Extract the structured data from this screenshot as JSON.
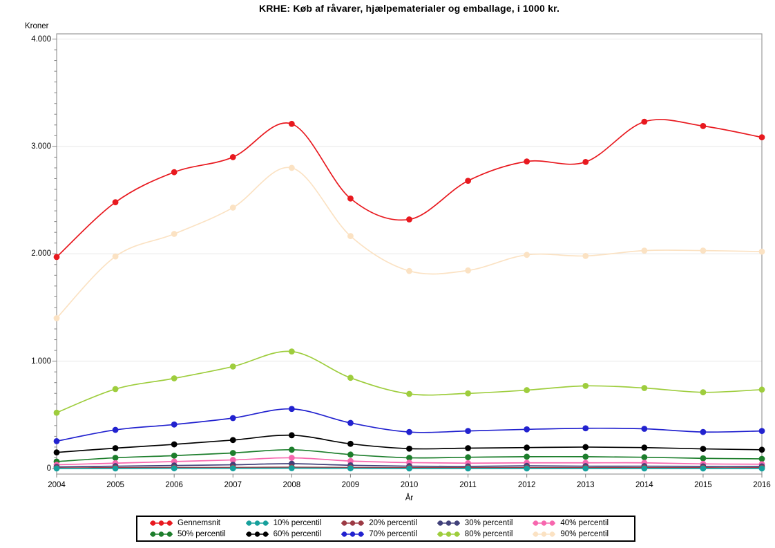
{
  "chart": {
    "title": "KRHE: Køb af råvarer, hjælpematerialer og emballage, i 1000 kr.",
    "y_axis": {
      "title": "Kroner",
      "tick_labels": [
        "0",
        "1.000",
        "2.000",
        "3.000",
        "4.000"
      ],
      "tick_values": [
        0,
        1000,
        2000,
        3000,
        4000
      ],
      "minor_tick_step": 100,
      "min": 0,
      "max": 4000
    },
    "x_axis": {
      "title": "År",
      "tick_labels": [
        "2004",
        "2005",
        "2006",
        "2007",
        "2008",
        "2009",
        "2010",
        "2011",
        "2012",
        "2013",
        "2014",
        "2015",
        "2016"
      ]
    },
    "frame_color": "#999999",
    "grid_color": "#e7e7e7",
    "tick_color": "#808080"
  },
  "chart_data": {
    "type": "line",
    "title": "KRHE: Køb af råvarer, hjælpematerialer og emballage, i 1000 kr.",
    "xlabel": "År",
    "ylabel": "Kroner",
    "ylim": [
      0,
      4000
    ],
    "grid": "horizontal",
    "legend_position": "bottom",
    "marker": "filled-circle",
    "smooth": true,
    "x": [
      2004,
      2005,
      2006,
      2007,
      2008,
      2009,
      2010,
      2011,
      2012,
      2013,
      2014,
      2015,
      2016
    ],
    "series": [
      {
        "name": "Gennemsnit",
        "color": "#e8191f",
        "values": [
          1970,
          2480,
          2760,
          2900,
          3210,
          2515,
          2320,
          2680,
          2860,
          2855,
          3230,
          3190,
          3085
        ]
      },
      {
        "name": "10% percentil",
        "color": "#17a09c",
        "values": [
          1,
          1,
          2,
          2,
          3,
          2,
          1,
          1,
          1,
          1,
          1,
          1,
          1
        ]
      },
      {
        "name": "20% percentil",
        "color": "#9c3a44",
        "values": [
          5,
          8,
          9,
          10,
          12,
          9,
          8,
          8,
          8,
          8,
          8,
          7,
          7
        ]
      },
      {
        "name": "30% percentil",
        "color": "#41417a",
        "values": [
          15,
          22,
          28,
          35,
          45,
          30,
          22,
          20,
          25,
          22,
          22,
          20,
          20
        ]
      },
      {
        "name": "40% percentil",
        "color": "#f767ae",
        "values": [
          35,
          50,
          65,
          80,
          100,
          70,
          55,
          50,
          53,
          53,
          53,
          43,
          40
        ]
      },
      {
        "name": "50% percentil",
        "color": "#1d7e2c",
        "values": [
          65,
          100,
          120,
          145,
          175,
          130,
          100,
          105,
          110,
          110,
          105,
          95,
          90
        ]
      },
      {
        "name": "60% percentil",
        "color": "#000000",
        "values": [
          150,
          190,
          225,
          265,
          310,
          230,
          185,
          190,
          195,
          200,
          195,
          183,
          175
        ]
      },
      {
        "name": "70% percentil",
        "color": "#2222cf",
        "values": [
          255,
          360,
          410,
          470,
          555,
          425,
          340,
          350,
          365,
          375,
          370,
          340,
          350
        ]
      },
      {
        "name": "80% percentil",
        "color": "#9ecd3d",
        "values": [
          520,
          740,
          840,
          950,
          1090,
          845,
          695,
          700,
          730,
          770,
          750,
          710,
          735
        ]
      },
      {
        "name": "90% percentil",
        "color": "#fbe2c3",
        "values": [
          1400,
          1975,
          2185,
          2430,
          2800,
          2165,
          1840,
          1845,
          1990,
          1980,
          2030,
          2030,
          2020
        ]
      }
    ]
  }
}
